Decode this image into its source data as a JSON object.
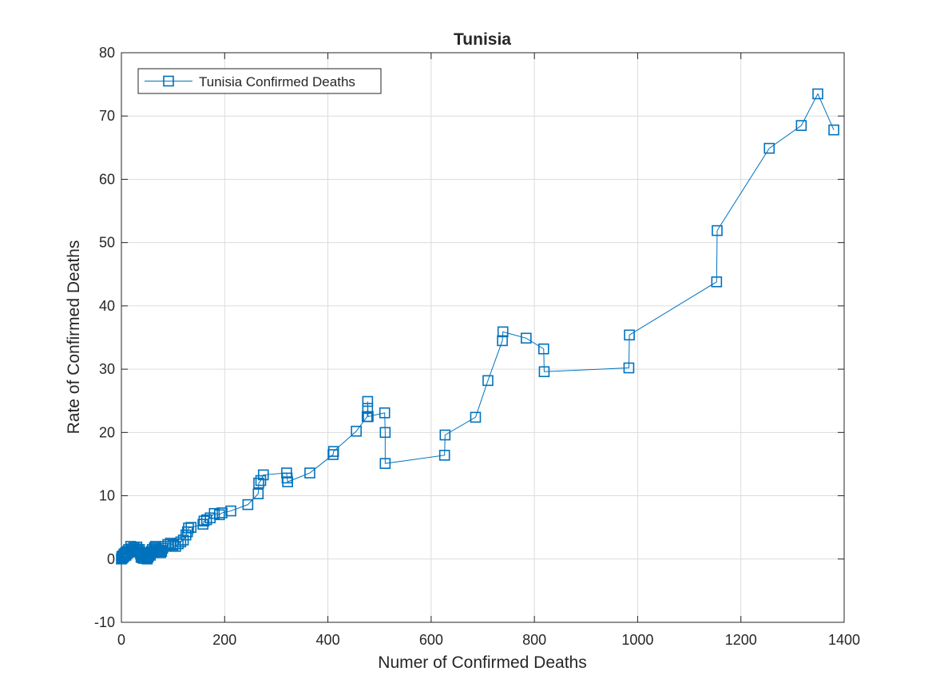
{
  "chart_data": {
    "type": "line",
    "title": "Tunisia",
    "xlabel": "Numer of Confirmed Deaths",
    "ylabel": "Rate of Confirmed Deaths",
    "xlim": [
      0,
      1400
    ],
    "ylim": [
      -10,
      80
    ],
    "xticks": [
      0,
      200,
      400,
      600,
      800,
      1000,
      1200,
      1400
    ],
    "yticks": [
      -10,
      0,
      10,
      20,
      30,
      40,
      50,
      60,
      70,
      80
    ],
    "grid": true,
    "legend_position": "top-left",
    "marker": "square",
    "color": "#0072bd",
    "series": [
      {
        "name": "Tunisia Confirmed Deaths",
        "x": [
          0,
          1,
          1,
          1,
          2,
          3,
          4,
          5,
          5,
          6,
          7,
          8,
          9,
          10,
          12,
          14,
          15,
          18,
          20,
          22,
          24,
          25,
          28,
          30,
          32,
          34,
          35,
          37,
          38,
          38,
          39,
          40,
          42,
          43,
          44,
          45,
          46,
          47,
          48,
          49,
          50,
          51,
          52,
          54,
          56,
          58,
          60,
          62,
          64,
          66,
          68,
          70,
          72,
          74,
          76,
          78,
          80,
          85,
          90,
          95,
          100,
          105,
          110,
          115,
          120,
          125,
          128,
          130,
          135,
          158,
          160,
          165,
          172,
          180,
          190,
          195,
          212,
          245,
          265,
          266,
          270,
          275,
          320,
          321,
          322,
          365,
          410,
          411,
          455,
          476,
          477,
          477,
          478,
          510,
          511,
          511,
          626,
          627,
          686,
          710,
          738,
          739,
          784,
          818,
          819,
          983,
          984,
          1153,
          1154,
          1255,
          1317,
          1349,
          1380
        ],
        "y": [
          0,
          0.3,
          0.1,
          0.4,
          0.2,
          0.5,
          0.3,
          0.6,
          0.8,
          0.5,
          0.7,
          1.0,
          0.6,
          1.2,
          0.9,
          1.5,
          1.1,
          2.0,
          1.6,
          1.3,
          1.8,
          1.2,
          1.6,
          1.9,
          1.4,
          1.1,
          1.5,
          0.8,
          0.3,
          1.0,
          0.5,
          0.2,
          0.7,
          0.1,
          0.4,
          0.9,
          0.2,
          0.6,
          0.1,
          0.3,
          0.0,
          0.5,
          0.3,
          0.8,
          0.6,
          1.2,
          1.5,
          1.0,
          1.8,
          2.0,
          1.6,
          1.3,
          1.1,
          1.4,
          1.0,
          1.2,
          1.7,
          2.0,
          2.3,
          2.5,
          2.2,
          2.0,
          2.4,
          2.7,
          3.0,
          3.8,
          4.3,
          4.9,
          5.0,
          5.5,
          6.0,
          6.2,
          6.5,
          7.2,
          7.0,
          7.3,
          7.6,
          8.6,
          10.3,
          12.0,
          12.4,
          13.3,
          13.6,
          12.8,
          12.2,
          13.6,
          16.5,
          17.0,
          20.2,
          22.5,
          23.8,
          24.9,
          22.5,
          23.1,
          20.0,
          15.1,
          16.4,
          19.6,
          22.4,
          28.2,
          34.5,
          35.9,
          34.9,
          33.2,
          29.6,
          30.2,
          35.4,
          43.8,
          51.9,
          64.9,
          68.5,
          73.5,
          67.8
        ]
      }
    ]
  }
}
